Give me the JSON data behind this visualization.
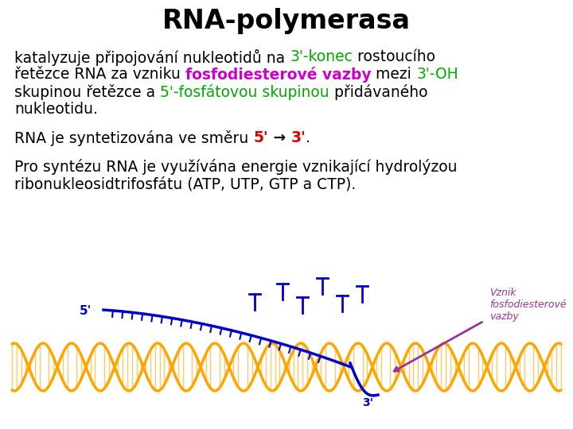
{
  "title": "RNA-polymerasa",
  "title_fontsize": 24,
  "title_fontweight": "bold",
  "bg_color": "#ffffff",
  "text_color": "#000000",
  "green_color": "#00aa00",
  "magenta_color": "#cc00cc",
  "red_color": "#dd0000",
  "blue_color": "#0000cc",
  "purple_color": "#993399",
  "orange_color": "#FFA500",
  "annotation": "Vznik\nfosfodiesterové\nvazby",
  "label_5prime": "5'",
  "label_3prime": "3'"
}
